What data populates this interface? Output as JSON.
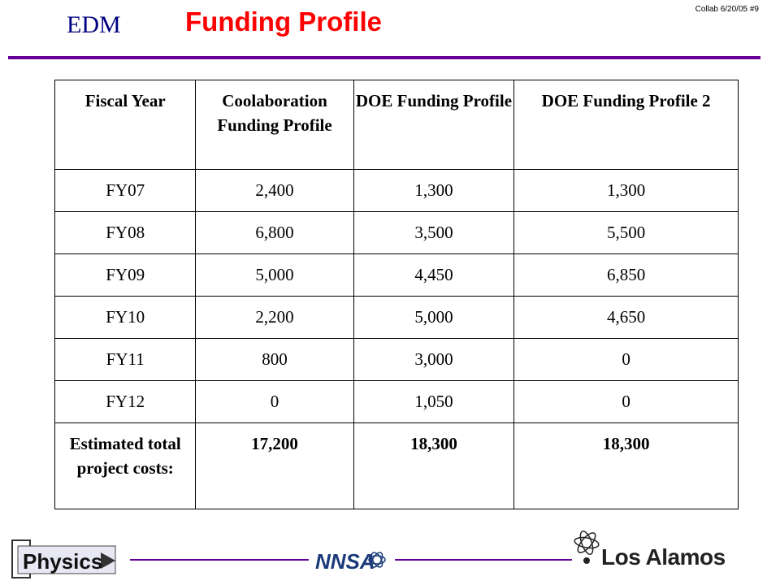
{
  "header": {
    "logo_text": "EDM",
    "title": "Funding Profile",
    "tag": "Collab 6/20/05 #9"
  },
  "table": {
    "columns": [
      "Fiscal Year",
      "Coolaboration Funding Profile",
      "DOE Funding Profile",
      "DOE Funding Profile 2"
    ],
    "rows": [
      [
        "FY07",
        "2,400",
        "1,300",
        "1,300"
      ],
      [
        "FY08",
        "6,800",
        "3,500",
        "5,500"
      ],
      [
        "FY09",
        "5,000",
        "4,450",
        "6,850"
      ],
      [
        "FY10",
        "2,200",
        "5,000",
        "4,650"
      ],
      [
        "FY11",
        "800",
        "3,000",
        "0"
      ],
      [
        "FY12",
        "0",
        "1,050",
        "0"
      ]
    ],
    "total": [
      "Estimated total project costs:",
      "17,200",
      "18,300",
      "18,300"
    ]
  },
  "footer": {
    "physics_logo": "Physics",
    "nnsa_logo": "NNSA",
    "lanl_logo": "Los Alamos"
  },
  "colors": {
    "title": "#ff0000",
    "logo": "#000080",
    "rule": "#660099"
  }
}
